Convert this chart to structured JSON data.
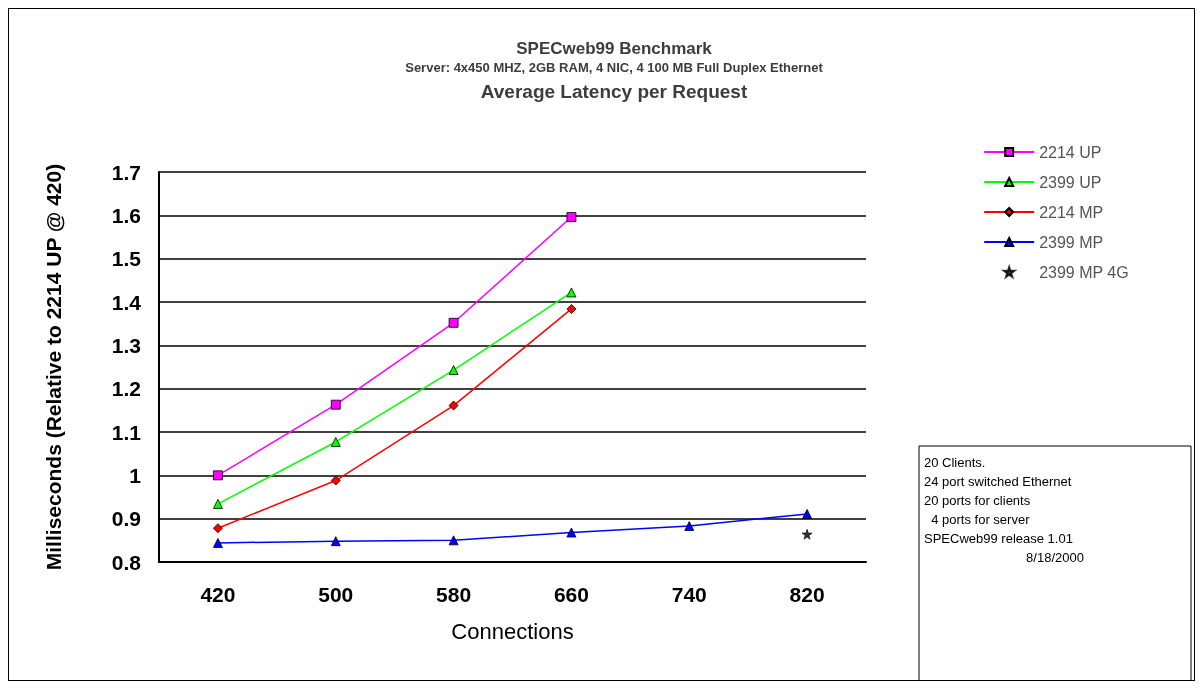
{
  "chart_data": {
    "type": "line",
    "title": "SPECweb99 Benchmark",
    "subtitle": "Server: 4x450 MHZ, 2GB RAM, 4 NIC, 4 100 MB Full Duplex Ethernet\nAverage Latency per Request",
    "xlabel": "Connections",
    "ylabel": "Milliseconds (Relative to 2214 UP @ 420)",
    "categories": [
      "420",
      "500",
      "580",
      "660",
      "740",
      "820"
    ],
    "series": [
      {
        "name": "2214 UP",
        "color": "#ff00ff",
        "marker": "square",
        "values": [
          1.0,
          1.163,
          1.352,
          1.596,
          null,
          null
        ]
      },
      {
        "name": "2399 UP",
        "color": "#00ff00",
        "marker": "triangle",
        "values": [
          0.934,
          1.077,
          1.243,
          1.422,
          null,
          null
        ]
      },
      {
        "name": "2214 MP",
        "color": "#ff0000",
        "marker": "diamond",
        "values": [
          0.878,
          0.988,
          1.161,
          1.384,
          null,
          null
        ]
      },
      {
        "name": "2399 MP",
        "color": "#0000ff",
        "marker": "triangle",
        "values": [
          0.844,
          0.848,
          0.85,
          0.868,
          0.883,
          0.911
        ]
      },
      {
        "name": "2399 MP 4G",
        "type": "scatter",
        "color": "#000000",
        "marker": "star",
        "values": [
          null,
          null,
          null,
          null,
          null,
          0.864
        ]
      }
    ],
    "ylim": [
      0.8,
      1.7
    ],
    "yticks": [
      0.8,
      0.9,
      1,
      1.1,
      1.2,
      1.3,
      1.4,
      1.5,
      1.6,
      1.7
    ],
    "grid": "y",
    "legend": "right",
    "annotations": [
      "20 Clients.",
      "24 port switched Ethernet",
      "20 ports for clients",
      "  4 ports for server",
      "SPECweb99 release 1.01",
      "8/18/2000"
    ]
  }
}
